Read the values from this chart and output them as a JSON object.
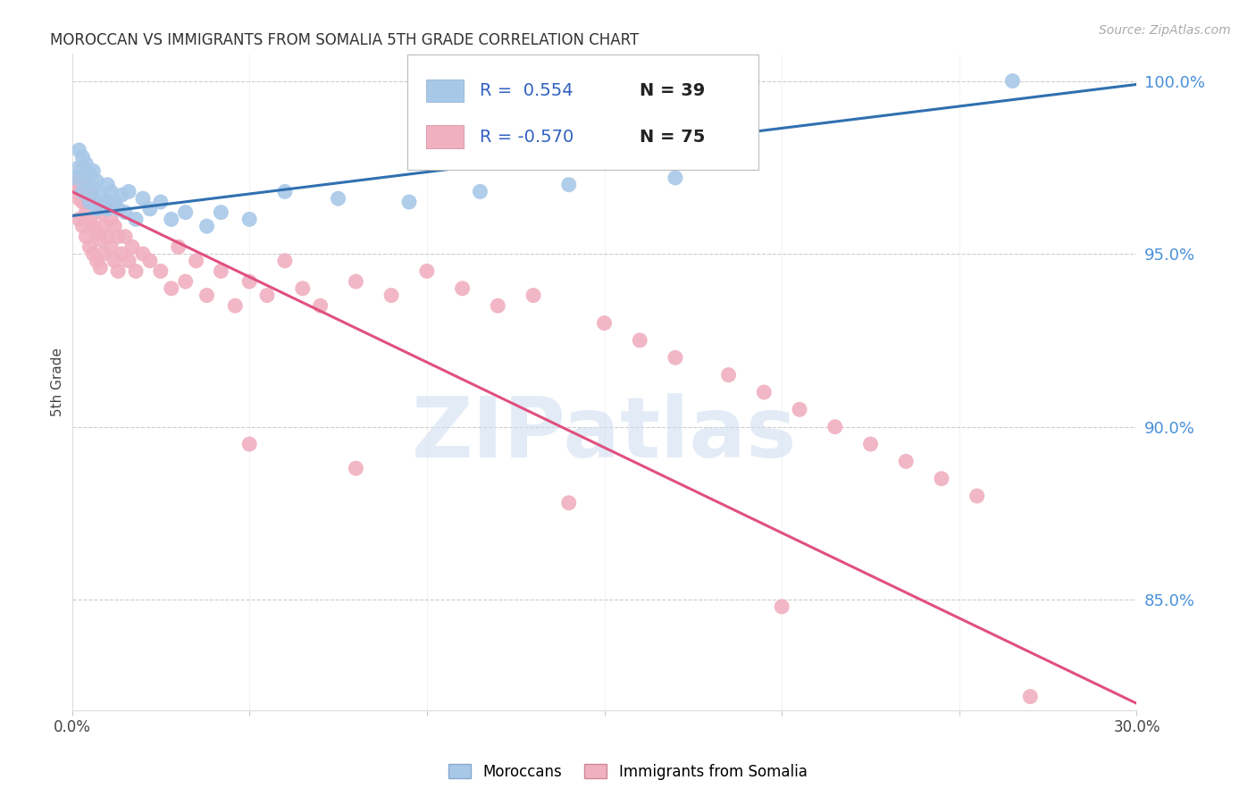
{
  "title": "MOROCCAN VS IMMIGRANTS FROM SOMALIA 5TH GRADE CORRELATION CHART",
  "source": "Source: ZipAtlas.com",
  "ylabel": "5th Grade",
  "xmin": 0.0,
  "xmax": 0.3,
  "ymin": 0.818,
  "ymax": 1.008,
  "yticks": [
    0.85,
    0.9,
    0.95,
    1.0
  ],
  "ytick_labels": [
    "85.0%",
    "90.0%",
    "95.0%",
    "100.0%"
  ],
  "xticks": [
    0.0,
    0.05,
    0.1,
    0.15,
    0.2,
    0.25,
    0.3
  ],
  "xtick_labels": [
    "0.0%",
    "",
    "",
    "",
    "",
    "",
    "30.0%"
  ],
  "blue_R": 0.554,
  "blue_N": 39,
  "pink_R": -0.57,
  "pink_N": 75,
  "blue_color": "#a8c8e8",
  "pink_color": "#f0b0c0",
  "blue_line_color": "#3070b0",
  "pink_line_color": "#e05080",
  "watermark_text": "ZIPatlas",
  "blue_scatter_x": [
    0.001,
    0.002,
    0.002,
    0.003,
    0.003,
    0.004,
    0.004,
    0.005,
    0.005,
    0.006,
    0.006,
    0.007,
    0.007,
    0.008,
    0.009,
    0.01,
    0.01,
    0.011,
    0.012,
    0.013,
    0.014,
    0.015,
    0.016,
    0.018,
    0.02,
    0.022,
    0.025,
    0.028,
    0.032,
    0.038,
    0.042,
    0.05,
    0.06,
    0.075,
    0.095,
    0.115,
    0.14,
    0.17,
    0.265
  ],
  "blue_scatter_y": [
    0.972,
    0.98,
    0.975,
    0.968,
    0.978,
    0.971,
    0.976,
    0.965,
    0.973,
    0.969,
    0.974,
    0.963,
    0.971,
    0.967,
    0.965,
    0.97,
    0.963,
    0.968,
    0.965,
    0.963,
    0.967,
    0.962,
    0.968,
    0.96,
    0.966,
    0.963,
    0.965,
    0.96,
    0.962,
    0.958,
    0.962,
    0.96,
    0.968,
    0.966,
    0.965,
    0.968,
    0.97,
    0.972,
    1.0
  ],
  "pink_scatter_x": [
    0.001,
    0.001,
    0.002,
    0.002,
    0.002,
    0.003,
    0.003,
    0.003,
    0.004,
    0.004,
    0.004,
    0.005,
    0.005,
    0.005,
    0.006,
    0.006,
    0.006,
    0.007,
    0.007,
    0.007,
    0.008,
    0.008,
    0.008,
    0.009,
    0.009,
    0.01,
    0.01,
    0.011,
    0.011,
    0.012,
    0.012,
    0.013,
    0.013,
    0.014,
    0.015,
    0.016,
    0.017,
    0.018,
    0.02,
    0.022,
    0.025,
    0.028,
    0.03,
    0.032,
    0.035,
    0.038,
    0.042,
    0.046,
    0.05,
    0.055,
    0.06,
    0.065,
    0.07,
    0.08,
    0.09,
    0.1,
    0.11,
    0.12,
    0.13,
    0.15,
    0.16,
    0.17,
    0.185,
    0.195,
    0.205,
    0.215,
    0.225,
    0.235,
    0.245,
    0.255,
    0.05,
    0.08,
    0.14,
    0.2,
    0.27
  ],
  "pink_scatter_y": [
    0.97,
    0.968,
    0.972,
    0.966,
    0.96,
    0.975,
    0.965,
    0.958,
    0.97,
    0.962,
    0.955,
    0.968,
    0.96,
    0.952,
    0.966,
    0.958,
    0.95,
    0.964,
    0.956,
    0.948,
    0.962,
    0.954,
    0.946,
    0.958,
    0.95,
    0.965,
    0.955,
    0.96,
    0.952,
    0.958,
    0.948,
    0.955,
    0.945,
    0.95,
    0.955,
    0.948,
    0.952,
    0.945,
    0.95,
    0.948,
    0.945,
    0.94,
    0.952,
    0.942,
    0.948,
    0.938,
    0.945,
    0.935,
    0.942,
    0.938,
    0.948,
    0.94,
    0.935,
    0.942,
    0.938,
    0.945,
    0.94,
    0.935,
    0.938,
    0.93,
    0.925,
    0.92,
    0.915,
    0.91,
    0.905,
    0.9,
    0.895,
    0.89,
    0.885,
    0.88,
    0.895,
    0.888,
    0.878,
    0.848,
    0.822
  ],
  "blue_trend_x": [
    0.0,
    0.3
  ],
  "blue_trend_y": [
    0.961,
    0.999
  ],
  "pink_trend_x": [
    0.0,
    0.3
  ],
  "pink_trend_y": [
    0.968,
    0.82
  ]
}
